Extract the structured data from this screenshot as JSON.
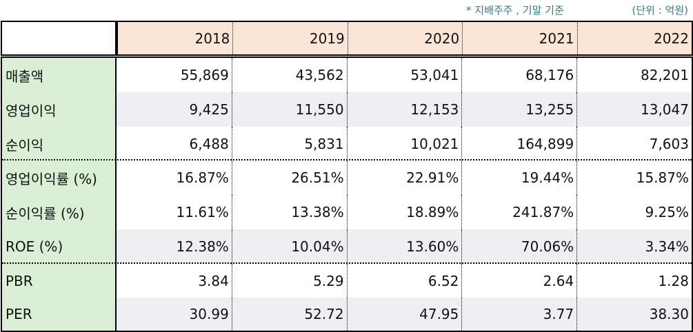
{
  "notes": {
    "basis": "* 지배주주 , 기말 기준",
    "unit": "(단위 : 억원)"
  },
  "table": {
    "columns": [
      "2018",
      "2019",
      "2020",
      "2021",
      "2022"
    ],
    "rows": [
      {
        "label": "매출액",
        "values": [
          "55,869",
          "43,562",
          "53,041",
          "68,176",
          "82,201"
        ]
      },
      {
        "label": "영업이익",
        "values": [
          "9,425",
          "11,550",
          "12,153",
          "13,255",
          "13,047"
        ]
      },
      {
        "label": "순이익",
        "values": [
          "6,488",
          "5,831",
          "10,021",
          "164,899",
          "7,603"
        ]
      },
      {
        "label": "영업이익률 (%)",
        "values": [
          "16.87%",
          "26.51%",
          "22.91%",
          "19.44%",
          "15.87%"
        ]
      },
      {
        "label": "순이익률 (%)",
        "values": [
          "11.61%",
          "13.38%",
          "18.89%",
          "241.87%",
          "9.25%"
        ]
      },
      {
        "label": "ROE (%)",
        "values": [
          "12.38%",
          "10.04%",
          "13.60%",
          "70.06%",
          "3.34%"
        ]
      },
      {
        "label": "PBR",
        "values": [
          "3.84",
          "5.29",
          "6.52",
          "2.64",
          "1.28"
        ]
      },
      {
        "label": "PER",
        "values": [
          "30.99",
          "52.72",
          "47.95",
          "3.77",
          "38.30"
        ]
      }
    ]
  },
  "colors": {
    "header_bg": "#fbe5d6",
    "label_bg": "#dbeed6",
    "stripe_bg": "#eeeff2",
    "note_text": "#2e7d8c"
  }
}
